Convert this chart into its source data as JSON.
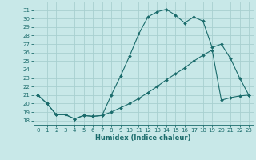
{
  "xlabel": "Humidex (Indice chaleur)",
  "ylabel": "",
  "background_color": "#c8e8e8",
  "line_color": "#1a6b6b",
  "grid_color": "#a8d0d0",
  "hours": [
    0,
    1,
    2,
    3,
    4,
    5,
    6,
    7,
    8,
    9,
    10,
    11,
    12,
    13,
    14,
    15,
    16,
    17,
    18,
    19,
    20,
    21,
    22,
    23
  ],
  "line1": [
    21.0,
    20.0,
    18.7,
    18.7,
    18.2,
    18.6,
    18.5,
    18.6,
    21.0,
    23.2,
    25.6,
    28.2,
    30.2,
    30.8,
    31.1,
    30.4,
    29.5,
    30.2,
    29.7,
    26.6,
    27.0,
    25.3,
    23.0,
    21.0
  ],
  "line2": [
    21.0,
    20.0,
    18.7,
    18.7,
    18.2,
    18.6,
    18.5,
    18.6,
    19.0,
    19.5,
    20.0,
    20.6,
    21.3,
    22.0,
    22.8,
    23.5,
    24.2,
    25.0,
    25.7,
    26.3,
    20.4,
    20.7,
    20.9,
    21.0
  ],
  "ylim": [
    17.5,
    32.0
  ],
  "xlim": [
    -0.5,
    23.5
  ],
  "yticks": [
    18,
    19,
    20,
    21,
    22,
    23,
    24,
    25,
    26,
    27,
    28,
    29,
    30,
    31
  ],
  "xticks": [
    0,
    1,
    2,
    3,
    4,
    5,
    6,
    7,
    8,
    9,
    10,
    11,
    12,
    13,
    14,
    15,
    16,
    17,
    18,
    19,
    20,
    21,
    22,
    23
  ],
  "tick_fontsize": 5.0,
  "xlabel_fontsize": 6.0,
  "marker_size": 2.0,
  "line_width": 0.8
}
